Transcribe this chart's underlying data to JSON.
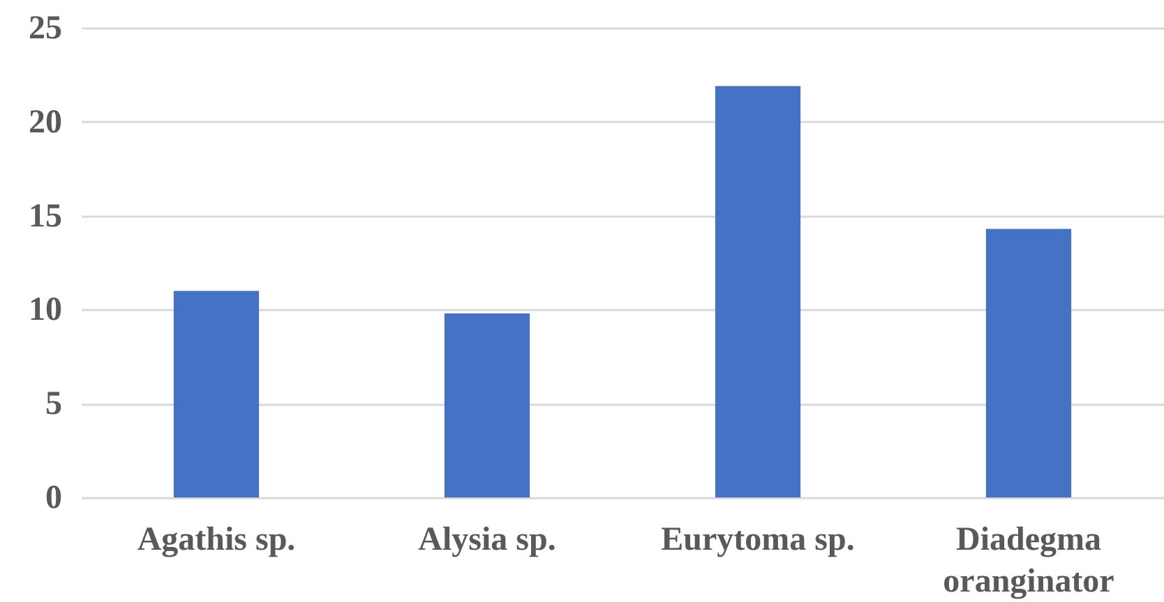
{
  "chart_data": {
    "type": "bar",
    "categories": [
      "Agathis sp.",
      "Alysia sp.",
      "Eurytoma sp.",
      "Diadegma oranginator"
    ],
    "values": [
      11.0,
      9.8,
      21.9,
      14.3
    ],
    "color": "#4472c4",
    "ylim": [
      0,
      25
    ],
    "yticks": [
      0,
      5,
      10,
      15,
      20,
      25
    ],
    "grid": "y"
  }
}
